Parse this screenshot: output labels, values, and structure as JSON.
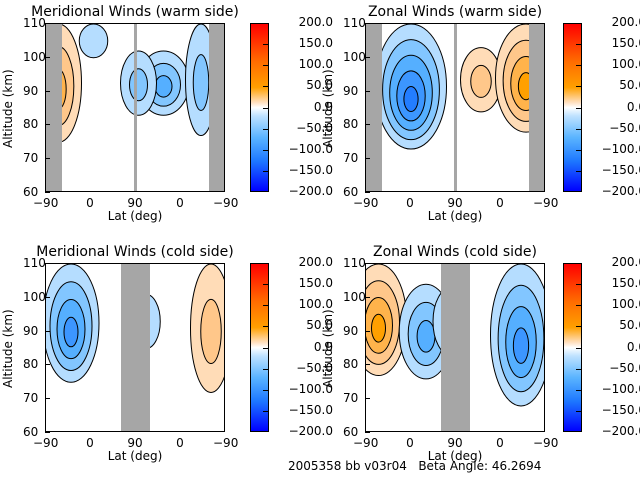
{
  "footer": {
    "text": "2005358 bb v03r04   Beta Angle: 46.2694"
  },
  "colorbar": {
    "ticks": [
      "200.0",
      "150.0",
      "100.0",
      "50.0",
      "0.0",
      "−50.0",
      "−100.0",
      "−150.0",
      "−200.0"
    ],
    "range": [
      -200,
      200
    ],
    "colors": {
      "max": "#ff0000",
      "mid": "#ffffff",
      "min": "#0000ff",
      "orange": "#ffa000",
      "blue": "#1e78ff"
    }
  },
  "chart_data": [
    {
      "type": "heatmap",
      "title": "Meridional Winds (warm side)",
      "xlabel": "Lat (deg)",
      "ylabel": "Altitude (km)",
      "xticks": [
        "−90",
        "0",
        "90",
        "0",
        "−90"
      ],
      "yticks": [
        "60",
        "70",
        "80",
        "90",
        "100",
        "110"
      ],
      "ylim": [
        60,
        110
      ],
      "colorbar_range": [
        -200,
        200
      ],
      "features": [
        {
          "lat_section": "left",
          "center_lat": -65,
          "alt": [
            75,
            110
          ],
          "value_max": 60,
          "sign": "positive"
        },
        {
          "lat_section": "left",
          "center_lat": 5,
          "alt": [
            100,
            110
          ],
          "value_min": -25,
          "sign": "negative"
        },
        {
          "lat_section": "right",
          "center_lat": 35,
          "alt": [
            83,
            102
          ],
          "value_min": -70,
          "sign": "negative"
        },
        {
          "lat_section": "right",
          "center_lat": 85,
          "alt": [
            83,
            102
          ],
          "value_min": -40,
          "sign": "negative"
        },
        {
          "lat_section": "right",
          "center_lat": -40,
          "alt": [
            77,
            110
          ],
          "value_min": -30,
          "sign": "negative"
        }
      ],
      "masked_lat": [
        "left edge (-90 to -65)",
        "right edge (-65 to -90)",
        "at 90"
      ]
    },
    {
      "type": "heatmap",
      "title": "Zonal Winds (warm side)",
      "xlabel": "Lat (deg)",
      "ylabel": "Altitude (km)",
      "xticks": [
        "−90",
        "0",
        "90",
        "0",
        "−90"
      ],
      "yticks": [
        "60",
        "70",
        "80",
        "90",
        "100",
        "110"
      ],
      "ylim": [
        60,
        110
      ],
      "colorbar_range": [
        -200,
        200
      ],
      "features": [
        {
          "lat_section": "left",
          "center_lat": 0,
          "alt": [
            73,
            110
          ],
          "value_min": -110,
          "sign": "negative"
        },
        {
          "lat_section": "right",
          "center_lat": 40,
          "alt": [
            84,
            103
          ],
          "value_max": 50,
          "sign": "positive"
        },
        {
          "lat_section": "right",
          "center_lat": -50,
          "alt": [
            78,
            110
          ],
          "value_max": 90,
          "sign": "positive"
        }
      ],
      "masked_lat": [
        "left edge (-90 to -65)",
        "right edge (-65 to -90)",
        "at 90"
      ]
    },
    {
      "type": "heatmap",
      "title": "Meridional Winds (cold side)",
      "xlabel": "Lat (deg)",
      "ylabel": "Altitude (km)",
      "xticks": [
        "−90",
        "0",
        "90",
        "0",
        "−90"
      ],
      "yticks": [
        "60",
        "70",
        "80",
        "90",
        "100",
        "110"
      ],
      "ylim": [
        60,
        110
      ],
      "colorbar_range": [
        -200,
        200
      ],
      "features": [
        {
          "lat_section": "left",
          "center_lat": -40,
          "alt": [
            75,
            110
          ],
          "value_min": -80,
          "sign": "negative"
        },
        {
          "lat_section": "right",
          "center_lat": -60,
          "alt": [
            72,
            110
          ],
          "value_max": 50,
          "sign": "positive"
        },
        {
          "lat_section": "right",
          "center_lat": 70,
          "alt": [
            85,
            101
          ],
          "value_min": -25,
          "sign": "negative"
        }
      ],
      "masked_lat": [
        "center (60 to 120)"
      ]
    },
    {
      "type": "heatmap",
      "title": "Zonal Winds (cold side)",
      "xlabel": "Lat (deg)",
      "ylabel": "Altitude (km)",
      "xticks": [
        "−90",
        "0",
        "90",
        "0",
        "−90"
      ],
      "yticks": [
        "60",
        "70",
        "80",
        "90",
        "100",
        "110"
      ],
      "ylim": [
        60,
        110
      ],
      "colorbar_range": [
        -200,
        200
      ],
      "features": [
        {
          "lat_section": "left",
          "center_lat": -65,
          "alt": [
            77,
            110
          ],
          "value_max": 80,
          "sign": "positive"
        },
        {
          "lat_section": "left",
          "center_lat": 30,
          "alt": [
            76,
            104
          ],
          "value_min": -75,
          "sign": "negative"
        },
        {
          "lat_section": "right",
          "center_lat": -40,
          "alt": [
            68,
            110
          ],
          "value_min": -90,
          "sign": "negative"
        },
        {
          "lat_section": "right",
          "center_lat": 100,
          "alt": [
            83,
            103
          ],
          "value_min": -40,
          "sign": "negative"
        }
      ],
      "masked_lat": [
        "center (60 to 120)"
      ]
    }
  ]
}
